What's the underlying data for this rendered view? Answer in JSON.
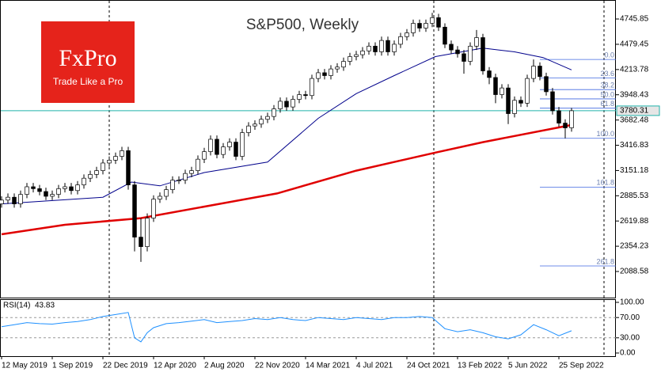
{
  "logo": {
    "name": "FxPro",
    "tagline": "Trade Like a Pro"
  },
  "chart_data": {
    "type": "candlestick",
    "title": "S&P500, Weekly",
    "x": [
      0,
      2,
      4,
      6,
      8,
      10,
      12,
      14,
      16,
      18,
      20,
      22,
      24,
      26,
      28,
      30,
      32,
      34,
      36,
      38,
      40,
      42,
      44,
      46,
      48,
      50,
      52,
      54,
      56,
      58,
      60,
      62,
      64,
      66,
      68,
      70,
      72,
      74,
      76,
      78,
      80,
      82,
      84,
      86,
      88,
      90,
      92,
      94,
      96,
      98,
      100,
      102,
      104,
      106,
      108,
      110,
      112,
      114,
      116,
      118,
      120,
      122,
      124,
      126,
      128,
      130,
      132,
      134,
      136,
      138,
      140,
      142,
      144,
      146,
      148,
      150,
      152,
      154,
      156,
      158,
      160,
      162,
      164,
      166,
      168,
      170,
      172,
      174,
      176,
      178,
      180
    ],
    "open": [
      2800,
      2840,
      2870,
      2800,
      2900,
      2980,
      2960,
      2930,
      2880,
      2900,
      2960,
      2980,
      2940,
      3000,
      3070,
      3110,
      3150,
      3230,
      3260,
      3300,
      3360,
      3000,
      2450,
      2350,
      2650,
      2850,
      2880,
      2950,
      3050,
      3050,
      3120,
      3150,
      3270,
      3350,
      3480,
      3320,
      3400,
      3450,
      3300,
      3550,
      3620,
      3640,
      3690,
      3720,
      3800,
      3880,
      3820,
      3900,
      3950,
      3940,
      4120,
      4180,
      4150,
      4220,
      4240,
      4300,
      4350,
      4370,
      4410,
      4460,
      4400,
      4520,
      4400,
      4480,
      4560,
      4600,
      4700,
      4650,
      4700,
      4760,
      4660,
      4480,
      4420,
      4380,
      4300,
      4460,
      4550,
      4200,
      4130,
      3950,
      4020,
      3750,
      3890,
      3860,
      4120,
      4250,
      4140,
      3980,
      3780,
      3650,
      3600
    ],
    "high": [
      2880,
      2910,
      2910,
      2940,
      3020,
      3020,
      3000,
      2970,
      2940,
      3000,
      3020,
      3020,
      3040,
      3110,
      3150,
      3190,
      3270,
      3300,
      3340,
      3400,
      3400,
      3040,
      2650,
      2700,
      2890,
      2920,
      2990,
      3090,
      3090,
      3160,
      3190,
      3310,
      3390,
      3520,
      3520,
      3440,
      3490,
      3490,
      3590,
      3660,
      3680,
      3730,
      3760,
      3840,
      3920,
      3920,
      3940,
      3990,
      3990,
      4160,
      4220,
      4220,
      4260,
      4280,
      4340,
      4390,
      4410,
      4450,
      4500,
      4500,
      4560,
      4560,
      4520,
      4600,
      4640,
      4740,
      4740,
      4740,
      4810,
      4800,
      4700,
      4520,
      4460,
      4420,
      4500,
      4630,
      4590,
      4240,
      4170,
      4060,
      4060,
      3930,
      3930,
      4160,
      4320,
      4290,
      4180,
      4020,
      3820,
      3690,
      3810
    ],
    "low": [
      2760,
      2800,
      2760,
      2760,
      2860,
      2920,
      2890,
      2840,
      2840,
      2860,
      2920,
      2900,
      2900,
      2960,
      3030,
      3070,
      3110,
      3190,
      3220,
      3260,
      2950,
      2300,
      2190,
      2300,
      2610,
      2810,
      2840,
      2910,
      3010,
      3010,
      3080,
      3110,
      3230,
      3310,
      3280,
      3280,
      3360,
      3260,
      3260,
      3510,
      3580,
      3600,
      3650,
      3680,
      3760,
      3780,
      3780,
      3860,
      3900,
      3900,
      4080,
      4110,
      4110,
      4180,
      4200,
      4260,
      4310,
      4330,
      4370,
      4360,
      4360,
      4360,
      4360,
      4440,
      4520,
      4560,
      4610,
      4610,
      4660,
      4620,
      4440,
      4380,
      4340,
      4170,
      4260,
      4420,
      4160,
      4060,
      3860,
      3910,
      3640,
      3710,
      3820,
      3820,
      4080,
      4100,
      3940,
      3740,
      3610,
      3490,
      3560
    ],
    "close": [
      2840,
      2870,
      2800,
      2900,
      2980,
      2960,
      2930,
      2880,
      2900,
      2960,
      2980,
      2940,
      3000,
      3070,
      3110,
      3150,
      3230,
      3260,
      3300,
      3360,
      3000,
      2450,
      2350,
      2650,
      2850,
      2880,
      2950,
      3050,
      3050,
      3120,
      3150,
      3270,
      3350,
      3480,
      3320,
      3400,
      3450,
      3300,
      3550,
      3620,
      3640,
      3690,
      3720,
      3800,
      3880,
      3820,
      3900,
      3950,
      3940,
      4120,
      4180,
      4150,
      4220,
      4240,
      4300,
      4350,
      4370,
      4410,
      4460,
      4400,
      4520,
      4400,
      4480,
      4560,
      4600,
      4700,
      4650,
      4700,
      4760,
      4660,
      4480,
      4420,
      4380,
      4300,
      4460,
      4550,
      4200,
      4130,
      3950,
      4020,
      3750,
      3890,
      3860,
      4120,
      4250,
      4140,
      3980,
      3780,
      3650,
      3600,
      3780.31
    ],
    "xlim": [
      0,
      194
    ],
    "xticks": [
      {
        "value": 0,
        "label": "12 May 2019"
      },
      {
        "value": 16,
        "label": "1 Sep 2019"
      },
      {
        "value": 32,
        "label": "22 Dec 2019"
      },
      {
        "value": 48,
        "label": "12 Apr 2020"
      },
      {
        "value": 64,
        "label": "2 Aug 2020"
      },
      {
        "value": 80,
        "label": "22 Nov 2020"
      },
      {
        "value": 96,
        "label": "14 Mar 2021"
      },
      {
        "value": 112,
        "label": "4 Jul 2021"
      },
      {
        "value": 128,
        "label": "24 Oct 2021"
      },
      {
        "value": 144,
        "label": "13 Feb 2022"
      },
      {
        "value": 160,
        "label": "5 Jun 2022"
      },
      {
        "value": 176,
        "label": "25 Sep 2022"
      }
    ],
    "ylim": [
      1822,
      4929
    ],
    "yticks": [
      4745.85,
      4479.45,
      4213.78,
      3948.43,
      3682.48,
      3416.83,
      3151.18,
      2885.53,
      2619.88,
      2354.23,
      2088.58
    ],
    "current_price": 3780.31,
    "current_color": "#20b2aa",
    "up_color": "#ffffff",
    "down_color": "#000000",
    "moving_averages": [
      {
        "color": "#00008b",
        "x": [
          0,
          32,
          41,
          50,
          64,
          84,
          100,
          112,
          124,
          137,
          152,
          162,
          171,
          180
        ],
        "values": [
          2800,
          2870,
          3030,
          2990,
          3130,
          3240,
          3700,
          3960,
          4150,
          4350,
          4440,
          4400,
          4340,
          4210
        ]
      },
      {
        "color": "#e00000",
        "x": [
          0,
          20,
          44,
          87,
          112,
          137,
          152,
          180
        ],
        "values": [
          2480,
          2580,
          2650,
          2910,
          3150,
          3340,
          3450,
          3630
        ]
      }
    ],
    "fibonacci": {
      "color": "#4169e1",
      "start": 170,
      "levels": [
        {
          "label": "0.0",
          "price": 4320
        },
        {
          "label": "23.6",
          "price": 4124
        },
        {
          "label": "38.2",
          "price": 4003
        },
        {
          "label": "50.0",
          "price": 3905
        },
        {
          "label": "61.8",
          "price": 3807
        },
        {
          "label": "100.0",
          "price": 3490
        },
        {
          "label": "161.8",
          "price": 2977
        },
        {
          "label": "261.8",
          "price": 2147
        }
      ]
    },
    "rsi": {
      "label": "RSI(14)",
      "current": 43.83,
      "color": "#1e90ff",
      "x": [
        0,
        4,
        8,
        12,
        16,
        20,
        24,
        28,
        32,
        36,
        40,
        42,
        44,
        46,
        48,
        52,
        56,
        60,
        64,
        68,
        72,
        76,
        80,
        84,
        88,
        92,
        96,
        100,
        104,
        108,
        112,
        116,
        120,
        124,
        128,
        132,
        136,
        140,
        144,
        148,
        152,
        156,
        160,
        164,
        168,
        172,
        176,
        180
      ],
      "values": [
        52,
        56,
        60,
        58,
        57,
        60,
        62,
        66,
        72,
        76,
        80,
        30,
        22,
        40,
        50,
        58,
        60,
        63,
        66,
        60,
        62,
        64,
        68,
        66,
        70,
        66,
        64,
        70,
        68,
        66,
        70,
        68,
        66,
        70,
        70,
        72,
        70,
        48,
        42,
        46,
        40,
        32,
        28,
        36,
        56,
        46,
        34,
        43.83
      ],
      "ylim": [
        0,
        100
      ],
      "yticks": [
        {
          "value": 100,
          "label": "100.00"
        },
        {
          "value": 70,
          "label": "70.00"
        },
        {
          "value": 30,
          "label": "30.00"
        },
        {
          "value": 0,
          "label": "0.00"
        }
      ]
    }
  }
}
